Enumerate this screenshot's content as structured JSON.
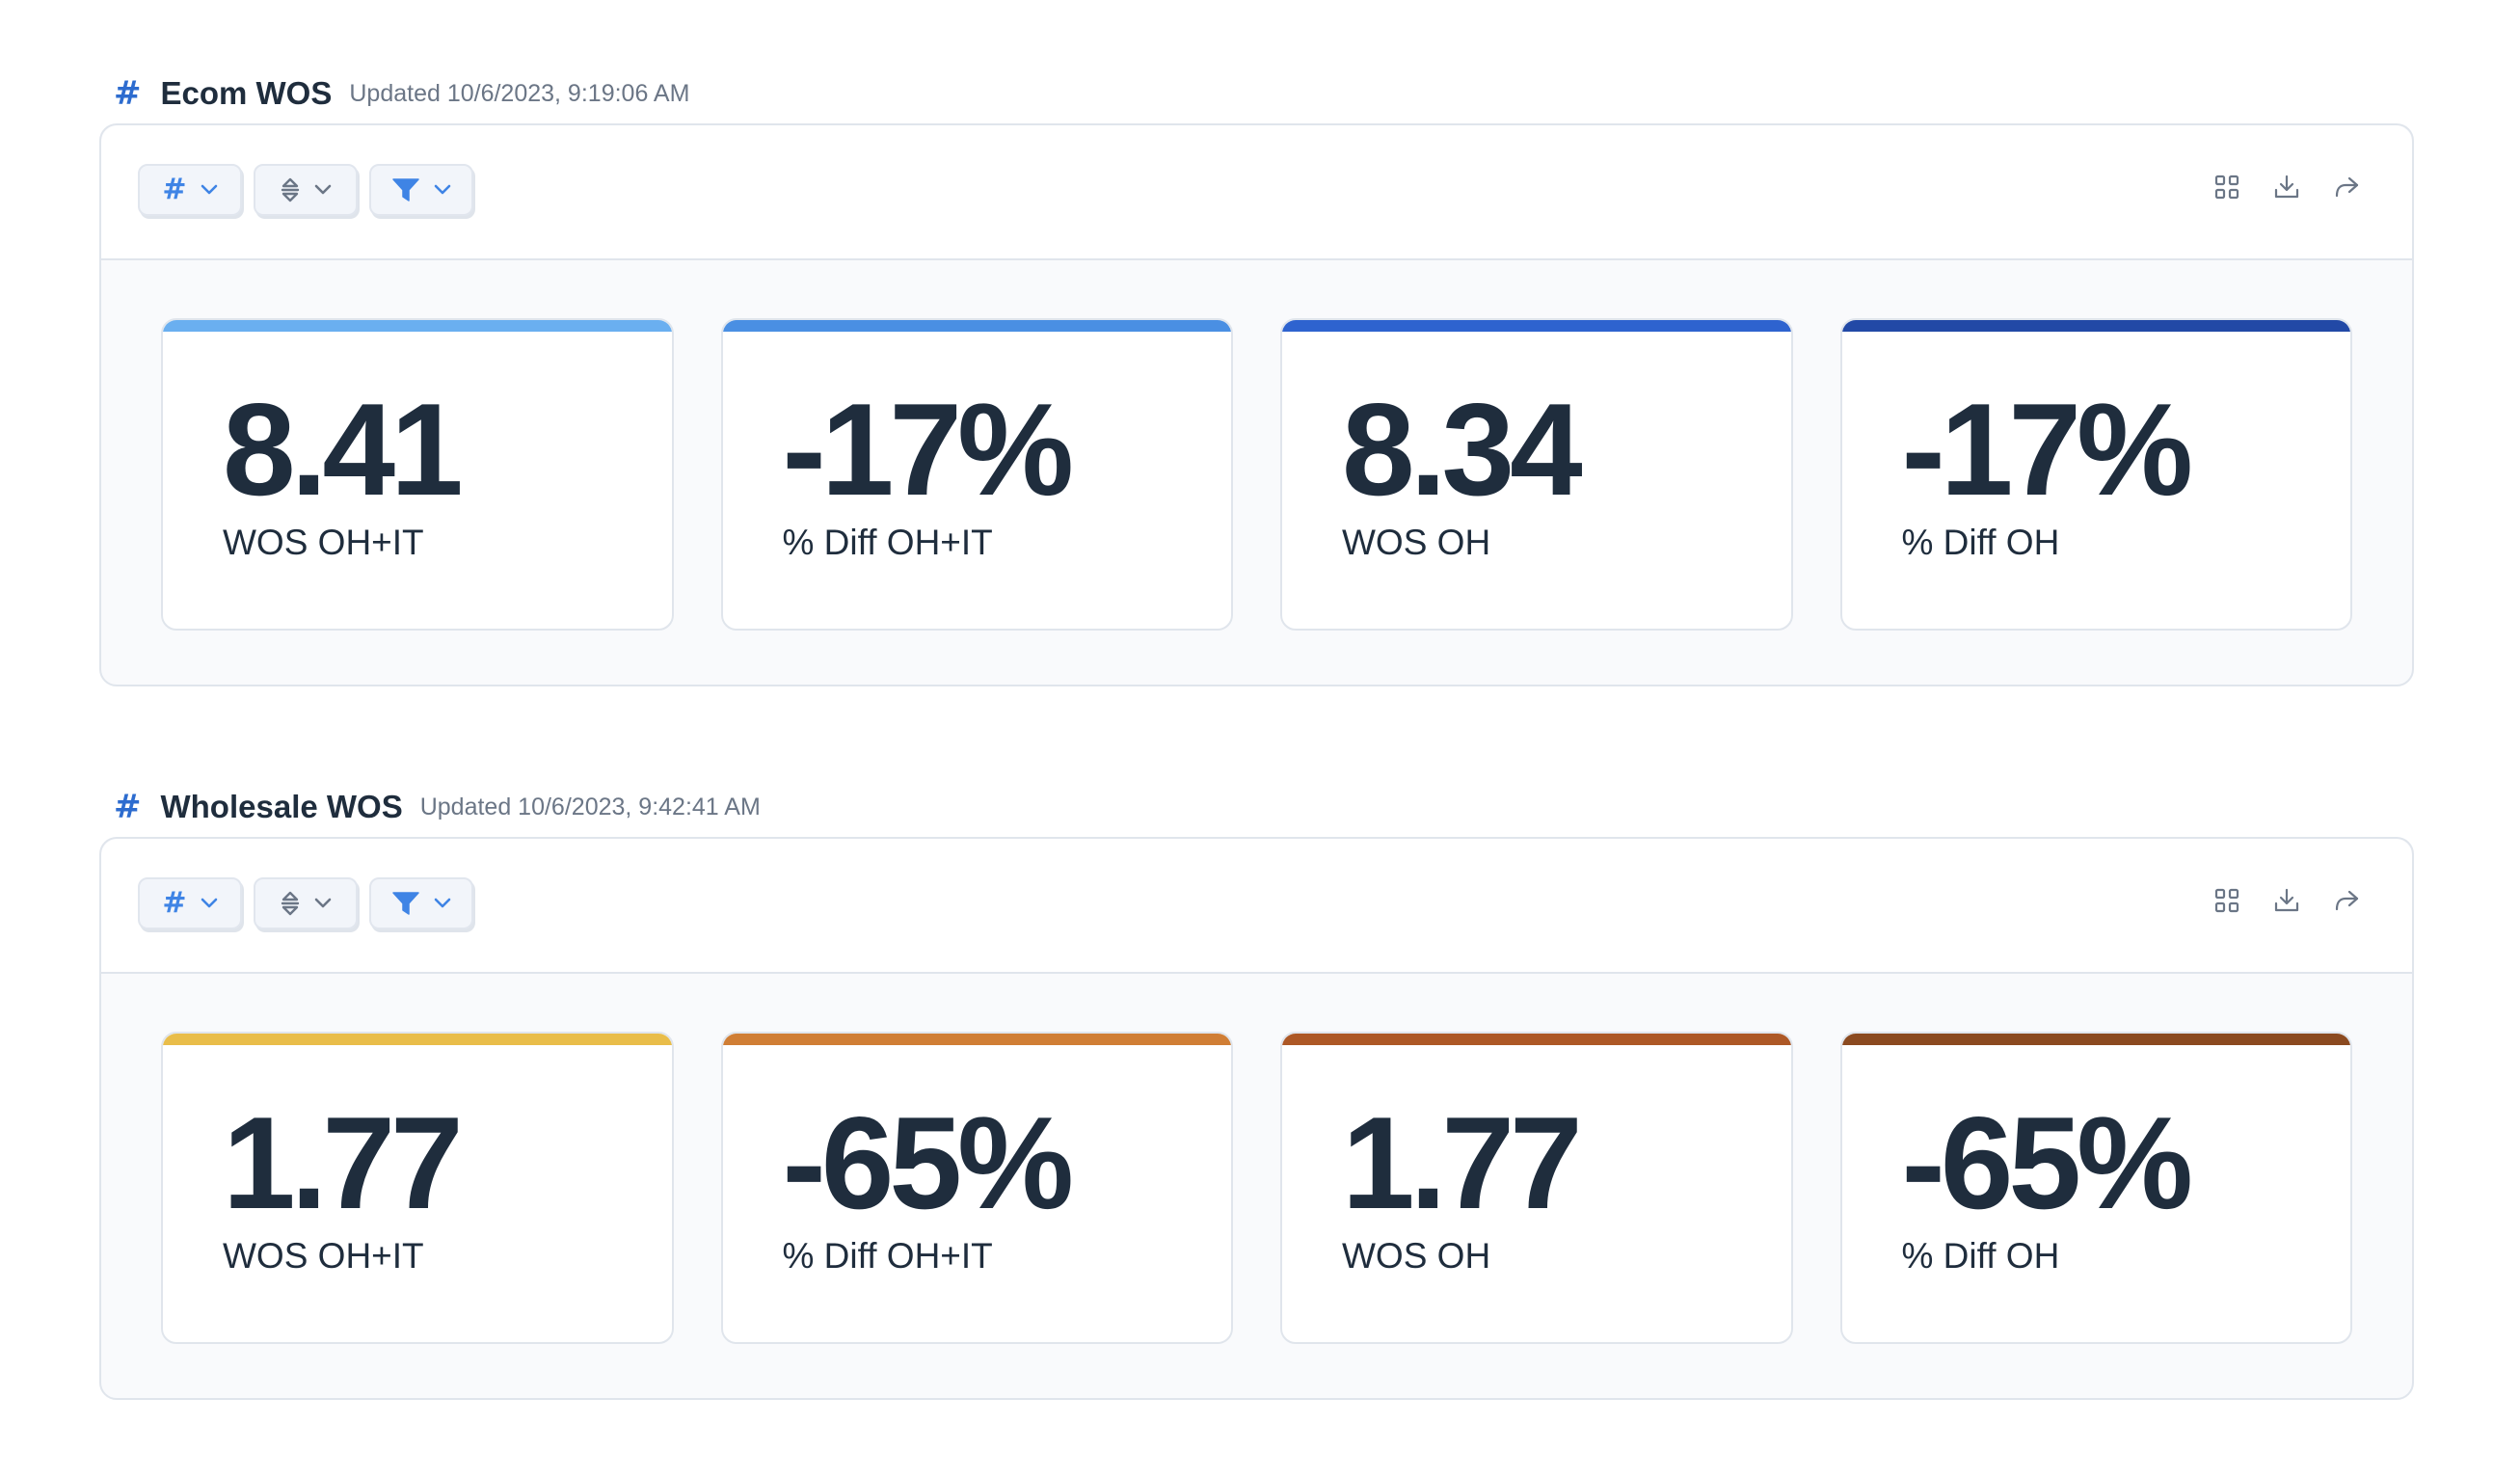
{
  "sections": [
    {
      "title": "Ecom WOS",
      "updated": "Updated 10/6/2023, 9:19:06 AM",
      "cards": [
        {
          "value": "8.41",
          "label": "WOS OH+IT",
          "color": "#6aaff0"
        },
        {
          "value": "-17%",
          "label": "% Diff OH+IT",
          "color": "#4a8fe3"
        },
        {
          "value": "8.34",
          "label": "WOS OH",
          "color": "#2e63cf"
        },
        {
          "value": "-17%",
          "label": "% Diff OH",
          "color": "#2249a6"
        }
      ]
    },
    {
      "title": "Wholesale WOS",
      "updated": "Updated 10/6/2023, 9:42:41 AM",
      "cards": [
        {
          "value": "1.77",
          "label": "WOS OH+IT",
          "color": "#e9bd4a"
        },
        {
          "value": "-65%",
          "label": "% Diff OH+IT",
          "color": "#d07e35"
        },
        {
          "value": "1.77",
          "label": "WOS OH",
          "color": "#ad5826"
        },
        {
          "value": "-65%",
          "label": "% Diff OH",
          "color": "#8b4a20"
        }
      ]
    }
  ],
  "icons": {
    "section_icon": "hash-icon",
    "toolbar_left": [
      "hash-icon",
      "sort-icon",
      "filter-icon"
    ],
    "toolbar_right": [
      "grid-icon",
      "download-icon",
      "share-icon"
    ]
  }
}
